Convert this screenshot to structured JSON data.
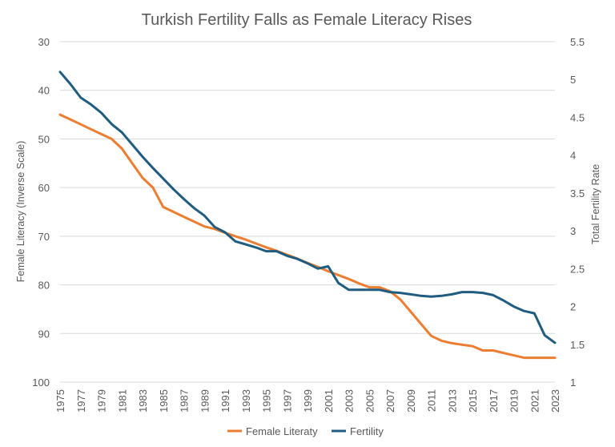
{
  "chart_data": {
    "type": "line",
    "title": "Turkish Fertility Falls as Female Literacy Rises",
    "x": [
      1975,
      1976,
      1977,
      1978,
      1979,
      1980,
      1981,
      1982,
      1983,
      1984,
      1985,
      1986,
      1987,
      1988,
      1989,
      1990,
      1991,
      1992,
      1993,
      1994,
      1995,
      1996,
      1997,
      1998,
      1999,
      2000,
      2001,
      2002,
      2003,
      2004,
      2005,
      2006,
      2007,
      2008,
      2009,
      2010,
      2011,
      2012,
      2013,
      2014,
      2015,
      2016,
      2017,
      2018,
      2019,
      2020,
      2021,
      2022,
      2023
    ],
    "x_tick_labels": [
      "1975",
      "1977",
      "1979",
      "1981",
      "1983",
      "1985",
      "1987",
      "1989",
      "1991",
      "1993",
      "1995",
      "1997",
      "1999",
      "2001",
      "2003",
      "2005",
      "2007",
      "2009",
      "2011",
      "2013",
      "2015",
      "2017",
      "2019",
      "2021",
      "2023"
    ],
    "y_left": {
      "label": "Female Literacy (Inverse Scale)",
      "range": [
        30,
        100
      ],
      "inverted": true,
      "ticks": [
        "30",
        "40",
        "50",
        "60",
        "70",
        "80",
        "90",
        "100"
      ]
    },
    "y_right": {
      "label": "Total Fertility Rate",
      "range": [
        1,
        5.5
      ],
      "ticks": [
        "1",
        "1.5",
        "2",
        "2.5",
        "3",
        "3.5",
        "4",
        "4.5",
        "5",
        "5.5"
      ]
    },
    "grid": true,
    "legend_position": "bottom",
    "series": [
      {
        "name": "Female Literaty",
        "axis": "left",
        "color": "#ED7D31",
        "values": [
          45,
          46,
          47,
          48,
          49,
          50,
          52,
          55,
          58,
          60,
          64,
          65,
          66,
          67,
          68,
          68.5,
          69.3,
          70,
          70.7,
          71.5,
          72.3,
          73,
          73.8,
          74.6,
          75.5,
          76.3,
          77.2,
          78,
          78.8,
          79.7,
          80.5,
          80.5,
          81.3,
          83,
          85.5,
          88,
          90.5,
          91.5,
          92,
          92.3,
          92.6,
          93.5,
          93.5,
          94,
          94.5,
          95,
          95,
          95,
          95
        ]
      },
      {
        "name": "Fertility",
        "axis": "right",
        "color": "#1F5C7F",
        "values": [
          5.1,
          4.94,
          4.76,
          4.67,
          4.56,
          4.41,
          4.3,
          4.14,
          3.98,
          3.83,
          3.69,
          3.55,
          3.42,
          3.3,
          3.2,
          3.05,
          2.98,
          2.86,
          2.82,
          2.78,
          2.73,
          2.73,
          2.67,
          2.63,
          2.57,
          2.5,
          2.53,
          2.31,
          2.22,
          2.22,
          2.22,
          2.22,
          2.19,
          2.18,
          2.16,
          2.14,
          2.13,
          2.14,
          2.16,
          2.19,
          2.19,
          2.18,
          2.15,
          2.08,
          2.0,
          1.94,
          1.91,
          1.62,
          1.52
        ]
      }
    ]
  }
}
